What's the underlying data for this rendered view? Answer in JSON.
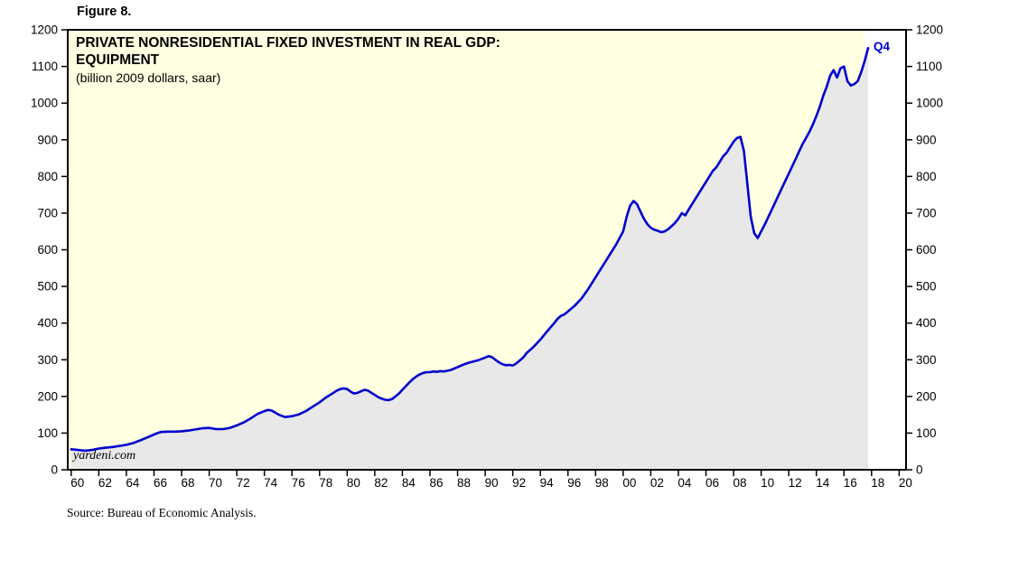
{
  "figure_label": "Figure 8.",
  "watermark": "yardeni.com",
  "source": "Source: Bureau of Economic Analysis.",
  "chart_data": {
    "type": "line",
    "title_line1": "PRIVATE NONRESIDENTIAL FIXED INVESTMENT IN REAL GDP:",
    "title_line2": "EQUIPMENT",
    "subtitle": "(billion 2009 dollars, saar)",
    "end_label": "Q4",
    "line_color": "#0000cd",
    "fill_color": "#e8e8e8",
    "bg_color": "#ffffe1",
    "future_band_color": "#ffffff",
    "frame_color": "#000000",
    "future_band_start": 2017.5,
    "xlim": [
      1959.75,
      2020.5
    ],
    "ylim": [
      0,
      1200
    ],
    "grid": false,
    "legend": "none",
    "yticks": [
      0,
      100,
      200,
      300,
      400,
      500,
      600,
      700,
      800,
      900,
      1000,
      1100,
      1200
    ],
    "xticks": [
      {
        "year": 1960,
        "label": "60"
      },
      {
        "year": 1962,
        "label": "62"
      },
      {
        "year": 1964,
        "label": "64"
      },
      {
        "year": 1966,
        "label": "66"
      },
      {
        "year": 1968,
        "label": "68"
      },
      {
        "year": 1970,
        "label": "70"
      },
      {
        "year": 1972,
        "label": "72"
      },
      {
        "year": 1974,
        "label": "74"
      },
      {
        "year": 1976,
        "label": "76"
      },
      {
        "year": 1978,
        "label": "78"
      },
      {
        "year": 1980,
        "label": "80"
      },
      {
        "year": 1982,
        "label": "82"
      },
      {
        "year": 1984,
        "label": "84"
      },
      {
        "year": 1986,
        "label": "86"
      },
      {
        "year": 1988,
        "label": "88"
      },
      {
        "year": 1990,
        "label": "90"
      },
      {
        "year": 1992,
        "label": "92"
      },
      {
        "year": 1994,
        "label": "94"
      },
      {
        "year": 1996,
        "label": "96"
      },
      {
        "year": 1998,
        "label": "98"
      },
      {
        "year": 2000,
        "label": "00"
      },
      {
        "year": 2002,
        "label": "02"
      },
      {
        "year": 2004,
        "label": "04"
      },
      {
        "year": 2006,
        "label": "06"
      },
      {
        "year": 2008,
        "label": "08"
      },
      {
        "year": 2010,
        "label": "10"
      },
      {
        "year": 2012,
        "label": "12"
      },
      {
        "year": 2014,
        "label": "14"
      },
      {
        "year": 2016,
        "label": "16"
      },
      {
        "year": 2018,
        "label": "18"
      },
      {
        "year": 2020,
        "label": "20"
      }
    ],
    "series": [
      {
        "name": "EQUIPMENT",
        "points": [
          [
            1960,
            56
          ],
          [
            1960.25,
            55
          ],
          [
            1960.5,
            54
          ],
          [
            1960.75,
            53
          ],
          [
            1961,
            52
          ],
          [
            1961.25,
            53
          ],
          [
            1961.5,
            54
          ],
          [
            1961.75,
            56
          ],
          [
            1962,
            58
          ],
          [
            1962.5,
            60
          ],
          [
            1963,
            62
          ],
          [
            1963.5,
            65
          ],
          [
            1964,
            68
          ],
          [
            1964.5,
            73
          ],
          [
            1965,
            80
          ],
          [
            1965.5,
            88
          ],
          [
            1966,
            96
          ],
          [
            1966.25,
            100
          ],
          [
            1966.5,
            103
          ],
          [
            1967,
            104
          ],
          [
            1967.5,
            104
          ],
          [
            1968,
            105
          ],
          [
            1968.5,
            107
          ],
          [
            1969,
            110
          ],
          [
            1969.5,
            113
          ],
          [
            1970,
            114
          ],
          [
            1970.5,
            111
          ],
          [
            1971,
            111
          ],
          [
            1971.5,
            114
          ],
          [
            1972,
            121
          ],
          [
            1972.5,
            129
          ],
          [
            1973,
            140
          ],
          [
            1973.5,
            152
          ],
          [
            1974,
            160
          ],
          [
            1974.25,
            163
          ],
          [
            1974.5,
            162
          ],
          [
            1974.75,
            157
          ],
          [
            1975,
            151
          ],
          [
            1975.25,
            147
          ],
          [
            1975.5,
            144
          ],
          [
            1976,
            146
          ],
          [
            1976.5,
            151
          ],
          [
            1977,
            160
          ],
          [
            1977.5,
            172
          ],
          [
            1978,
            184
          ],
          [
            1978.5,
            198
          ],
          [
            1979,
            210
          ],
          [
            1979.25,
            216
          ],
          [
            1979.5,
            220
          ],
          [
            1979.75,
            222
          ],
          [
            1980,
            220
          ],
          [
            1980.25,
            213
          ],
          [
            1980.5,
            208
          ],
          [
            1980.75,
            210
          ],
          [
            1981,
            214
          ],
          [
            1981.25,
            218
          ],
          [
            1981.5,
            216
          ],
          [
            1981.75,
            210
          ],
          [
            1982,
            204
          ],
          [
            1982.25,
            198
          ],
          [
            1982.5,
            194
          ],
          [
            1982.75,
            191
          ],
          [
            1983,
            190
          ],
          [
            1983.25,
            193
          ],
          [
            1983.5,
            200
          ],
          [
            1983.75,
            208
          ],
          [
            1984,
            218
          ],
          [
            1984.25,
            228
          ],
          [
            1984.5,
            238
          ],
          [
            1984.75,
            247
          ],
          [
            1985,
            254
          ],
          [
            1985.25,
            260
          ],
          [
            1985.5,
            264
          ],
          [
            1985.75,
            266
          ],
          [
            1986,
            266
          ],
          [
            1986.25,
            268
          ],
          [
            1986.5,
            267
          ],
          [
            1986.75,
            269
          ],
          [
            1987,
            268
          ],
          [
            1987.25,
            270
          ],
          [
            1987.5,
            272
          ],
          [
            1987.75,
            276
          ],
          [
            1988,
            280
          ],
          [
            1988.25,
            284
          ],
          [
            1988.5,
            288
          ],
          [
            1988.75,
            291
          ],
          [
            1989,
            294
          ],
          [
            1989.5,
            299
          ],
          [
            1990,
            306
          ],
          [
            1990.25,
            310
          ],
          [
            1990.5,
            307
          ],
          [
            1990.75,
            300
          ],
          [
            1991,
            293
          ],
          [
            1991.25,
            288
          ],
          [
            1991.5,
            285
          ],
          [
            1991.75,
            286
          ],
          [
            1992,
            284
          ],
          [
            1992.25,
            290
          ],
          [
            1992.5,
            298
          ],
          [
            1992.75,
            306
          ],
          [
            1993,
            318
          ],
          [
            1993.5,
            335
          ],
          [
            1994,
            355
          ],
          [
            1994.5,
            378
          ],
          [
            1995,
            400
          ],
          [
            1995.25,
            412
          ],
          [
            1995.5,
            420
          ],
          [
            1995.75,
            424
          ],
          [
            1996,
            432
          ],
          [
            1996.5,
            448
          ],
          [
            1997,
            468
          ],
          [
            1997.5,
            495
          ],
          [
            1998,
            525
          ],
          [
            1998.5,
            555
          ],
          [
            1999,
            585
          ],
          [
            1999.5,
            615
          ],
          [
            2000,
            650
          ],
          [
            2000.25,
            690
          ],
          [
            2000.5,
            720
          ],
          [
            2000.75,
            733
          ],
          [
            2001,
            725
          ],
          [
            2001.25,
            705
          ],
          [
            2001.5,
            685
          ],
          [
            2001.75,
            670
          ],
          [
            2002,
            660
          ],
          [
            2002.25,
            655
          ],
          [
            2002.5,
            652
          ],
          [
            2002.75,
            648
          ],
          [
            2003,
            650
          ],
          [
            2003.25,
            656
          ],
          [
            2003.5,
            664
          ],
          [
            2003.75,
            673
          ],
          [
            2004,
            685
          ],
          [
            2004.25,
            700
          ],
          [
            2004.5,
            694
          ],
          [
            2004.75,
            710
          ],
          [
            2005,
            725
          ],
          [
            2005.5,
            755
          ],
          [
            2006,
            785
          ],
          [
            2006.25,
            800
          ],
          [
            2006.5,
            815
          ],
          [
            2006.75,
            825
          ],
          [
            2007,
            840
          ],
          [
            2007.25,
            855
          ],
          [
            2007.5,
            865
          ],
          [
            2007.75,
            880
          ],
          [
            2008,
            895
          ],
          [
            2008.25,
            905
          ],
          [
            2008.5,
            908
          ],
          [
            2008.75,
            870
          ],
          [
            2009,
            780
          ],
          [
            2009.25,
            690
          ],
          [
            2009.5,
            645
          ],
          [
            2009.75,
            632
          ],
          [
            2010,
            650
          ],
          [
            2010.25,
            668
          ],
          [
            2010.5,
            688
          ],
          [
            2010.75,
            708
          ],
          [
            2011,
            728
          ],
          [
            2011.25,
            748
          ],
          [
            2011.5,
            768
          ],
          [
            2011.75,
            788
          ],
          [
            2012,
            808
          ],
          [
            2012.25,
            828
          ],
          [
            2012.5,
            848
          ],
          [
            2012.75,
            868
          ],
          [
            2013,
            888
          ],
          [
            2013.25,
            905
          ],
          [
            2013.5,
            922
          ],
          [
            2013.75,
            942
          ],
          [
            2014,
            965
          ],
          [
            2014.25,
            990
          ],
          [
            2014.5,
            1020
          ],
          [
            2014.75,
            1045
          ],
          [
            2015,
            1075
          ],
          [
            2015.25,
            1090
          ],
          [
            2015.5,
            1070
          ],
          [
            2015.75,
            1095
          ],
          [
            2016,
            1100
          ],
          [
            2016.25,
            1060
          ],
          [
            2016.5,
            1048
          ],
          [
            2016.75,
            1052
          ],
          [
            2017,
            1060
          ],
          [
            2017.25,
            1085
          ],
          [
            2017.5,
            1115
          ],
          [
            2017.75,
            1150
          ]
        ]
      }
    ]
  }
}
